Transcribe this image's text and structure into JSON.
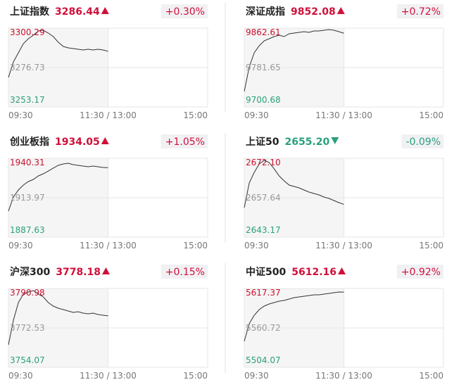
{
  "chart_data": [
    {
      "type": "line",
      "title": "上证指数",
      "price": "3286.44",
      "change": "+0.30%",
      "price_color": "#d0103a",
      "x": [
        0,
        6,
        12,
        18,
        24,
        30,
        36,
        42,
        48,
        54,
        60,
        66,
        72,
        78,
        84,
        90,
        96,
        102,
        108,
        114,
        120
      ],
      "values": [
        3270.84,
        3280.1,
        3285.57,
        3291.03,
        3293.98,
        3296.08,
        3298.61,
        3299.03,
        3297.34,
        3295.24,
        3291.87,
        3289.35,
        3288.51,
        3288.09,
        3287.67,
        3287.25,
        3287.67,
        3287.25,
        3287.67,
        3287.25,
        3286.44
      ],
      "color": "#333333",
      "xlim": [
        0,
        240
      ],
      "xticks": [
        {
          "value": 0,
          "label": "09:30"
        },
        {
          "value": 120,
          "label": "11:30 / 13:00"
        },
        {
          "value": 240,
          "label": "15:00"
        }
      ],
      "ylim": [
        3253.17,
        3300.29
      ],
      "yticks": [
        3300.29,
        3276.73,
        3253.17
      ],
      "grid": true
    },
    {
      "type": "line",
      "title": "深证成指",
      "price": "9852.08",
      "change": "+0.72%",
      "price_color": "#d0103a",
      "x": [
        0,
        6,
        12,
        18,
        24,
        30,
        36,
        42,
        48,
        54,
        60,
        66,
        72,
        78,
        84,
        90,
        96,
        102,
        108,
        114,
        120
      ],
      "values": [
        9732.49,
        9783.09,
        9812.01,
        9826.47,
        9836.59,
        9840.92,
        9845.26,
        9848.15,
        9845.26,
        9851.05,
        9852.49,
        9853.94,
        9855.38,
        9853.94,
        9856.83,
        9856.83,
        9858.27,
        9859.72,
        9858.27,
        9855.38,
        9852.08
      ],
      "color": "#333333",
      "xlim": [
        0,
        240
      ],
      "xticks": [
        {
          "value": 0,
          "label": "09:30"
        },
        {
          "value": 120,
          "label": "11:30 / 13:00"
        },
        {
          "value": 240,
          "label": "15:00"
        }
      ],
      "ylim": [
        9700.68,
        9862.61
      ],
      "yticks": [
        9862.61,
        9781.65,
        9700.68
      ],
      "grid": true
    },
    {
      "type": "line",
      "title": "创业板指",
      "price": "1934.05",
      "change": "+1.05%",
      "price_color": "#d0103a",
      "x": [
        0,
        6,
        12,
        18,
        24,
        30,
        36,
        42,
        48,
        54,
        60,
        66,
        72,
        78,
        84,
        90,
        96,
        102,
        108,
        114,
        120
      ],
      "values": [
        1905.03,
        1914.44,
        1919.15,
        1922.44,
        1924.79,
        1926.2,
        1928.55,
        1929.96,
        1931.84,
        1933.73,
        1935.61,
        1936.55,
        1937.02,
        1936.08,
        1935.61,
        1935.14,
        1934.67,
        1935.14,
        1934.67,
        1934.2,
        1934.05
      ],
      "color": "#333333",
      "xlim": [
        0,
        240
      ],
      "xticks": [
        {
          "value": 0,
          "label": "09:30"
        },
        {
          "value": 120,
          "label": "11:30 / 13:00"
        },
        {
          "value": 240,
          "label": "15:00"
        }
      ],
      "ylim": [
        1887.63,
        1940.31
      ],
      "yticks": [
        1940.31,
        1913.97,
        1887.63
      ],
      "grid": true
    },
    {
      "type": "line",
      "title": "上证50",
      "price": "2655.20",
      "change": "-0.09%",
      "price_color": "#2aa07c",
      "x": [
        0,
        6,
        12,
        18,
        24,
        30,
        36,
        42,
        48,
        54,
        60,
        66,
        72,
        78,
        84,
        90,
        96,
        102,
        108,
        114,
        120
      ],
      "values": [
        2654.02,
        2663.06,
        2666.93,
        2670.03,
        2671.33,
        2670.55,
        2668.23,
        2665.64,
        2663.83,
        2662.28,
        2661.77,
        2661.25,
        2660.48,
        2659.7,
        2659.19,
        2658.67,
        2657.89,
        2657.38,
        2656.6,
        2655.83,
        2655.2
      ],
      "color": "#333333",
      "xlim": [
        0,
        240
      ],
      "xticks": [
        {
          "value": 0,
          "label": "09:30"
        },
        {
          "value": 120,
          "label": "11:30 / 13:00"
        },
        {
          "value": 240,
          "label": "15:00"
        }
      ],
      "ylim": [
        2643.17,
        2672.1
      ],
      "yticks": [
        {
          "value": 2672.1,
          "label": "2672.10"
        },
        2657.64,
        2643.17
      ],
      "grid": true
    },
    {
      "type": "line",
      "title": "沪深300",
      "price": "3778.18",
      "change": "+0.15%",
      "price_color": "#d0103a",
      "x": [
        0,
        6,
        12,
        18,
        24,
        30,
        36,
        42,
        48,
        54,
        60,
        66,
        72,
        78,
        84,
        90,
        96,
        102,
        108,
        114,
        120
      ],
      "values": [
        3764.62,
        3776.15,
        3784.39,
        3788.34,
        3789.33,
        3789.99,
        3788.34,
        3787.03,
        3784.39,
        3782.74,
        3781.75,
        3781.09,
        3780.43,
        3779.78,
        3780.11,
        3779.44,
        3779.12,
        3779.44,
        3778.79,
        3778.46,
        3778.18
      ],
      "color": "#333333",
      "xlim": [
        0,
        240
      ],
      "xticks": [
        {
          "value": 0,
          "label": "09:30"
        },
        {
          "value": 120,
          "label": "11:30 / 13:00"
        },
        {
          "value": 240,
          "label": "15:00"
        }
      ],
      "ylim": [
        3754.07,
        3790.98
      ],
      "yticks": [
        3790.98,
        3772.53,
        3754.07
      ],
      "grid": true
    },
    {
      "type": "line",
      "title": "中证500",
      "price": "5612.16",
      "change": "+0.92%",
      "price_color": "#d0103a",
      "x": [
        0,
        6,
        12,
        18,
        24,
        30,
        36,
        42,
        48,
        54,
        60,
        66,
        72,
        78,
        84,
        90,
        96,
        102,
        108,
        114,
        120
      ],
      "values": [
        5541.5,
        5566.79,
        5578.93,
        5587.02,
        5592.08,
        5595.11,
        5597.14,
        5599.16,
        5600.17,
        5602.2,
        5604.22,
        5605.23,
        5606.24,
        5607.25,
        5608.27,
        5608.27,
        5609.28,
        5610.29,
        5611.3,
        5612.31,
        5612.16
      ],
      "color": "#333333",
      "xlim": [
        0,
        240
      ],
      "xticks": [
        {
          "value": 0,
          "label": "09:30"
        },
        {
          "value": 120,
          "label": "11:30 / 13:00"
        },
        {
          "value": 240,
          "label": "15:00"
        }
      ],
      "ylim": [
        5504.07,
        5617.37
      ],
      "yticks": [
        5617.37,
        5560.72,
        5504.07
      ],
      "grid": true
    }
  ]
}
